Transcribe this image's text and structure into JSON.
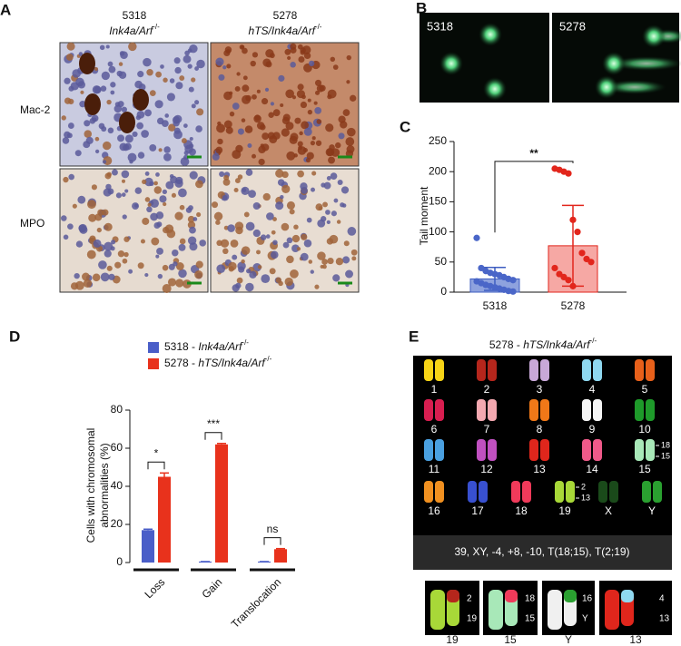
{
  "panel_labels": [
    "A",
    "B",
    "C",
    "D",
    "E"
  ],
  "panel_a": {
    "columns": [
      {
        "line": "5318",
        "genotype": "Ink4a/Arf",
        "superscript": "-/-"
      },
      {
        "line": "5278",
        "genotype": "hTS/Ink4a/Arf",
        "superscript": "-/-"
      }
    ],
    "rows": [
      "Mac-2",
      "MPO"
    ]
  },
  "panel_b": {
    "labels": [
      "5318",
      "5278"
    ]
  },
  "chart_data": [
    {
      "type": "bar_scatter",
      "ylabel": "Tail moment",
      "categories": [
        "5318",
        "5278"
      ],
      "values": [
        22,
        77
      ],
      "errors": [
        19,
        67
      ],
      "colors": [
        "#8ea2de",
        "#f6a8a4"
      ],
      "edge_colors": [
        "#3d5cc0",
        "#e2261c"
      ],
      "points": [
        [
          90,
          40,
          35,
          32,
          30,
          28,
          25,
          22,
          20,
          18,
          15,
          12,
          10,
          8,
          6,
          4,
          2,
          1
        ],
        [
          205,
          203,
          200,
          197,
          120,
          100,
          65,
          55,
          50,
          40,
          30,
          25,
          20,
          10
        ]
      ],
      "point_colors": [
        "#4a66c8",
        "#e2261c"
      ],
      "significance": "**",
      "ylim": [
        0,
        250
      ],
      "yticks": [
        0,
        50,
        100,
        150,
        200,
        250
      ]
    },
    {
      "type": "grouped_bar",
      "ylabel": [
        "Cells with chromosomal",
        "abnormalities (%)"
      ],
      "categories": [
        "Loss",
        "Gain",
        "Translocation"
      ],
      "series": [
        {
          "name": "5318 -",
          "genotype": "Ink4a/Arf",
          "superscript": "-/-",
          "color": "#4a5ec8",
          "values": [
            17,
            0.5,
            0.5
          ],
          "errors": [
            0.5,
            0,
            0
          ]
        },
        {
          "name": "5278 -",
          "genotype": "hTS/Ink4a/Arf",
          "superscript": "-/-",
          "color": "#e8321c",
          "values": [
            45,
            62,
            7
          ],
          "errors": [
            2,
            0.5,
            0.3
          ]
        }
      ],
      "significance": [
        "*",
        "***",
        "ns"
      ],
      "ylim": [
        0,
        80
      ],
      "yticks": [
        0,
        20,
        40,
        60,
        80
      ]
    }
  ],
  "panel_e": {
    "title": {
      "line": "5278 -",
      "genotype": "hTS/Ink4a/Arf",
      "superscript": "-/-"
    },
    "chromosomes": [
      {
        "label": "1",
        "color": "#f7d416"
      },
      {
        "label": "2",
        "color": "#b5261c"
      },
      {
        "label": "3",
        "color": "#c8a8d8"
      },
      {
        "label": "4",
        "color": "#8fd8f0"
      },
      {
        "label": "5",
        "color": "#e8601a"
      },
      {
        "label": "6",
        "color": "#d81e50"
      },
      {
        "label": "7",
        "color": "#f4a8b0"
      },
      {
        "label": "8",
        "color": "#f07818"
      },
      {
        "label": "9",
        "color": "#f5f5f5"
      },
      {
        "label": "10",
        "color": "#1e9a2a"
      },
      {
        "label": "11",
        "color": "#4aa0e0"
      },
      {
        "label": "12",
        "color": "#c050c0"
      },
      {
        "label": "13",
        "color": "#e0261c"
      },
      {
        "label": "14",
        "color": "#f05a8a"
      },
      {
        "label": "15",
        "color": "#a8e8b8"
      },
      {
        "label": "16",
        "color": "#f09020"
      },
      {
        "label": "17",
        "color": "#3850d0"
      },
      {
        "label": "18",
        "color": "#f03a5a"
      },
      {
        "label": "19",
        "color": "#a8d838"
      },
      {
        "label": "X",
        "color": "#1a4a1a"
      },
      {
        "label": "Y",
        "color": "#2aa030"
      }
    ],
    "chromosome_15_labels": [
      "18",
      "15"
    ],
    "chromosome_19_labels": [
      "2",
      "13"
    ],
    "karyotype": "39, XY, -4, +8, -10, T(18;15), T(2;19)",
    "insets": [
      {
        "label": "19",
        "parts": [
          "2",
          "19"
        ]
      },
      {
        "label": "15",
        "parts": [
          "18",
          "15"
        ]
      },
      {
        "label": "Y",
        "parts": [
          "16",
          "Y"
        ]
      },
      {
        "label": "13",
        "parts": [
          "4",
          "13"
        ]
      }
    ]
  }
}
